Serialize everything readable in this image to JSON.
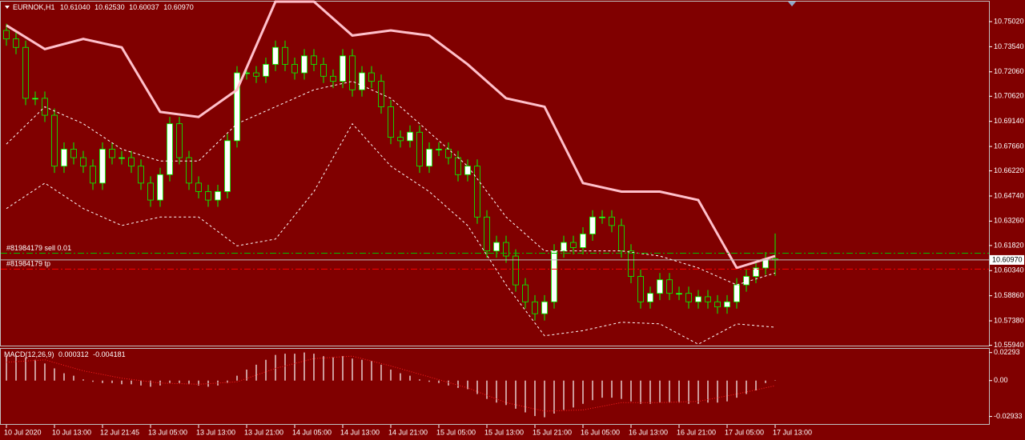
{
  "chart_data": [
    {
      "type": "candlestick",
      "title": "EURNOK,H1",
      "readout": [
        "10.61040",
        "10.62530",
        "10.60037",
        "10.60970"
      ],
      "bull_color": "#ffffff",
      "bear_color": "#800000",
      "wick_color": "#00ff00",
      "open": [
        10.745,
        10.74,
        10.735,
        10.705,
        10.705,
        10.695,
        10.665,
        10.675,
        10.67,
        10.665,
        10.655,
        10.675,
        10.67,
        10.67,
        10.665,
        10.655,
        10.645,
        10.66,
        10.69,
        10.67,
        10.655,
        10.65,
        10.645,
        10.65,
        10.68,
        10.72,
        10.72,
        10.718,
        10.725,
        10.735,
        10.725,
        10.72,
        10.73,
        10.725,
        10.718,
        10.715,
        10.73,
        10.71,
        10.72,
        10.715,
        10.7,
        10.682,
        10.68,
        10.685,
        10.665,
        10.675,
        10.675,
        10.67,
        10.66,
        10.665,
        10.635,
        10.615,
        10.62,
        10.612,
        10.595,
        10.585,
        10.578,
        10.585,
        10.615,
        10.62,
        10.617,
        10.625,
        10.635,
        10.635,
        10.63,
        10.615,
        10.6,
        10.585,
        10.59,
        10.598,
        10.59,
        10.59,
        10.585,
        10.588,
        10.585,
        10.582,
        10.585,
        10.595,
        10.6,
        10.605,
        10.6104
      ],
      "high": [
        10.749,
        10.744,
        10.739,
        10.709,
        10.709,
        10.699,
        10.679,
        10.679,
        10.674,
        10.669,
        10.679,
        10.679,
        10.674,
        10.674,
        10.669,
        10.659,
        10.664,
        10.694,
        10.694,
        10.674,
        10.659,
        10.654,
        10.654,
        10.684,
        10.724,
        10.724,
        10.724,
        10.729,
        10.739,
        10.739,
        10.729,
        10.734,
        10.734,
        10.729,
        10.722,
        10.734,
        10.734,
        10.724,
        10.724,
        10.719,
        10.704,
        10.686,
        10.689,
        10.689,
        10.679,
        10.679,
        10.679,
        10.674,
        10.669,
        10.669,
        10.639,
        10.624,
        10.624,
        10.616,
        10.599,
        10.589,
        10.589,
        10.619,
        10.624,
        10.624,
        10.629,
        10.639,
        10.639,
        10.639,
        10.634,
        10.619,
        10.604,
        10.594,
        10.602,
        10.602,
        10.594,
        10.594,
        10.592,
        10.592,
        10.589,
        10.589,
        10.599,
        10.604,
        10.609,
        10.6144,
        10.6253
      ],
      "low": [
        10.736,
        10.731,
        10.701,
        10.701,
        10.691,
        10.661,
        10.661,
        10.666,
        10.661,
        10.651,
        10.651,
        10.666,
        10.666,
        10.661,
        10.651,
        10.641,
        10.641,
        10.656,
        10.666,
        10.651,
        10.646,
        10.641,
        10.641,
        10.646,
        10.676,
        10.716,
        10.714,
        10.714,
        10.721,
        10.721,
        10.716,
        10.716,
        10.721,
        10.714,
        10.711,
        10.711,
        10.706,
        10.706,
        10.711,
        10.696,
        10.678,
        10.676,
        10.676,
        10.661,
        10.661,
        10.671,
        10.666,
        10.656,
        10.656,
        10.631,
        10.611,
        10.611,
        10.608,
        10.591,
        10.581,
        10.574,
        10.574,
        10.581,
        10.611,
        10.613,
        10.613,
        10.621,
        10.631,
        10.626,
        10.611,
        10.596,
        10.581,
        10.581,
        10.586,
        10.586,
        10.586,
        10.581,
        10.581,
        10.581,
        10.578,
        10.578,
        10.581,
        10.591,
        10.596,
        10.601,
        10.60037
      ],
      "close": [
        10.74,
        10.735,
        10.705,
        10.705,
        10.695,
        10.665,
        10.675,
        10.67,
        10.665,
        10.655,
        10.675,
        10.67,
        10.67,
        10.665,
        10.655,
        10.645,
        10.66,
        10.69,
        10.67,
        10.655,
        10.65,
        10.645,
        10.65,
        10.68,
        10.72,
        10.72,
        10.718,
        10.725,
        10.735,
        10.725,
        10.72,
        10.73,
        10.725,
        10.718,
        10.715,
        10.73,
        10.71,
        10.72,
        10.715,
        10.7,
        10.682,
        10.68,
        10.685,
        10.665,
        10.675,
        10.675,
        10.67,
        10.66,
        10.665,
        10.635,
        10.615,
        10.62,
        10.612,
        10.595,
        10.585,
        10.578,
        10.585,
        10.615,
        10.62,
        10.617,
        10.625,
        10.635,
        10.635,
        10.63,
        10.615,
        10.6,
        10.585,
        10.59,
        10.598,
        10.59,
        10.59,
        10.585,
        10.588,
        10.585,
        10.582,
        10.585,
        10.595,
        10.6,
        10.605,
        10.6104,
        10.6097
      ],
      "overlays": [
        {
          "color": "#ffc0cb",
          "style": "solid",
          "x": [
            0,
            4,
            8,
            12,
            16,
            20,
            24,
            28,
            32,
            36,
            40,
            44,
            48,
            52,
            56,
            60,
            64,
            68,
            72,
            76,
            80
          ],
          "values": [
            10.748,
            10.734,
            10.74,
            10.735,
            10.697,
            10.694,
            10.71,
            10.762,
            10.762,
            10.742,
            10.745,
            10.742,
            10.725,
            10.705,
            10.7,
            10.655,
            10.65,
            10.65,
            10.645,
            10.605,
            10.612
          ]
        },
        {
          "color": "#ffffff",
          "style": "dashed",
          "x": [
            0,
            4,
            8,
            12,
            16,
            20,
            24,
            28,
            32,
            36,
            40,
            44,
            48,
            52,
            56,
            60,
            64,
            68,
            72,
            76,
            80
          ],
          "values": [
            10.678,
            10.7,
            10.69,
            10.675,
            10.668,
            10.668,
            10.69,
            10.7,
            10.71,
            10.715,
            10.705,
            10.685,
            10.665,
            10.635,
            10.615,
            10.615,
            10.615,
            10.612,
            10.605,
            10.595,
            10.602
          ]
        },
        {
          "color": "#ffffff",
          "style": "dashed",
          "x": [
            0,
            4,
            8,
            12,
            16,
            20,
            24,
            28,
            32,
            36,
            40,
            44,
            48,
            52,
            56,
            60,
            64,
            68,
            72,
            76,
            80
          ],
          "values": [
            10.64,
            10.655,
            10.64,
            10.63,
            10.635,
            10.635,
            10.618,
            10.622,
            10.65,
            10.69,
            10.665,
            10.65,
            10.63,
            10.595,
            10.565,
            10.568,
            10.573,
            10.572,
            10.56,
            10.572,
            10.57
          ]
        }
      ],
      "orders": [
        {
          "label": "#81984179 sell 0.01",
          "price": 10.6137,
          "color": "#00c000"
        },
        {
          "label": "#81984179 tp",
          "price": 10.6043,
          "color": "#ff0000"
        }
      ],
      "current_price": {
        "value": 10.6097,
        "label": "10.60970"
      },
      "ylim": [
        10.5592,
        10.762
      ],
      "yticks": [
        {
          "value": 10.7502,
          "label": "10.75020"
        },
        {
          "value": 10.7354,
          "label": "10.73540"
        },
        {
          "value": 10.7206,
          "label": "10.72060"
        },
        {
          "value": 10.7062,
          "label": "10.70620"
        },
        {
          "value": 10.6914,
          "label": "10.69140"
        },
        {
          "value": 10.6766,
          "label": "10.67660"
        },
        {
          "value": 10.6622,
          "label": "10.66220"
        },
        {
          "value": 10.6474,
          "label": "10.64740"
        },
        {
          "value": 10.6326,
          "label": "10.63260"
        },
        {
          "value": 10.6182,
          "label": "10.61820"
        },
        {
          "value": 10.6034,
          "label": "10.60340"
        },
        {
          "value": 10.5886,
          "label": "10.58860"
        },
        {
          "value": 10.5738,
          "label": "10.57380"
        },
        {
          "value": 10.5594,
          "label": "10.55940"
        }
      ],
      "xticks": [
        {
          "value": 0,
          "label": "10 Jul 2020"
        },
        {
          "value": 5,
          "label": "10 Jul 13:00"
        },
        {
          "value": 10,
          "label": "12 Jul 21:45"
        },
        {
          "value": 15,
          "label": "13 Jul 05:00"
        },
        {
          "value": 20,
          "label": "13 Jul 13:00"
        },
        {
          "value": 25,
          "label": "13 Jul 21:00"
        },
        {
          "value": 30,
          "label": "14 Jul 05:00"
        },
        {
          "value": 35,
          "label": "14 Jul 13:00"
        },
        {
          "value": 40,
          "label": "14 Jul 21:00"
        },
        {
          "value": 45,
          "label": "15 Jul 05:00"
        },
        {
          "value": 50,
          "label": "15 Jul 13:00"
        },
        {
          "value": 55,
          "label": "15 Jul 21:00"
        },
        {
          "value": 60,
          "label": "16 Jul 05:00"
        },
        {
          "value": 65,
          "label": "16 Jul 13:00"
        },
        {
          "value": 70,
          "label": "16 Jul 21:00"
        },
        {
          "value": 75,
          "label": "17 Jul 05:00"
        },
        {
          "value": 80,
          "label": "17 Jul 13:00"
        }
      ]
    },
    {
      "type": "bar",
      "title": "MACD(12,26,9)",
      "readout": [
        "0.000312",
        "-0.004181"
      ],
      "color": "#ffffff",
      "values": [
        0.02,
        0.021,
        0.019,
        0.017,
        0.014,
        0.01,
        0.006,
        0.004,
        0.001,
        -0.001,
        -0.002,
        -0.002,
        -0.003,
        -0.003,
        -0.004,
        -0.005,
        -0.004,
        -0.002,
        -0.002,
        -0.003,
        -0.004,
        -0.005,
        -0.004,
        -0.002,
        0.004,
        0.009,
        0.013,
        0.017,
        0.021,
        0.022,
        0.022,
        0.023,
        0.022,
        0.02,
        0.019,
        0.02,
        0.018,
        0.017,
        0.016,
        0.013,
        0.009,
        0.006,
        0.004,
        0.001,
        -0.001,
        -0.002,
        -0.004,
        -0.006,
        -0.007,
        -0.011,
        -0.015,
        -0.018,
        -0.02,
        -0.023,
        -0.026,
        -0.029,
        -0.03,
        -0.027,
        -0.024,
        -0.022,
        -0.019,
        -0.016,
        -0.014,
        -0.014,
        -0.015,
        -0.017,
        -0.019,
        -0.019,
        -0.018,
        -0.018,
        -0.018,
        -0.019,
        -0.019,
        -0.018,
        -0.018,
        -0.017,
        -0.014,
        -0.011,
        -0.008,
        -0.002,
        0.000312
      ],
      "overlays": [
        {
          "color": "#ff2020",
          "style": "dotted",
          "x": [
            0,
            4,
            8,
            12,
            16,
            20,
            24,
            28,
            32,
            36,
            40,
            44,
            48,
            52,
            56,
            60,
            64,
            68,
            72,
            76,
            80
          ],
          "values": [
            0.015,
            0.017,
            0.008,
            0.002,
            -0.002,
            -0.003,
            -0.001,
            0.01,
            0.018,
            0.02,
            0.012,
            0.003,
            -0.006,
            -0.018,
            -0.025,
            -0.024,
            -0.018,
            -0.018,
            -0.017,
            -0.011,
            -0.004181
          ]
        }
      ],
      "ylim": [
        -0.0355,
        0.026
      ],
      "yticks": [
        0.02293,
        {
          "value": 0,
          "label": "0.00"
        },
        -0.02933
      ]
    }
  ]
}
